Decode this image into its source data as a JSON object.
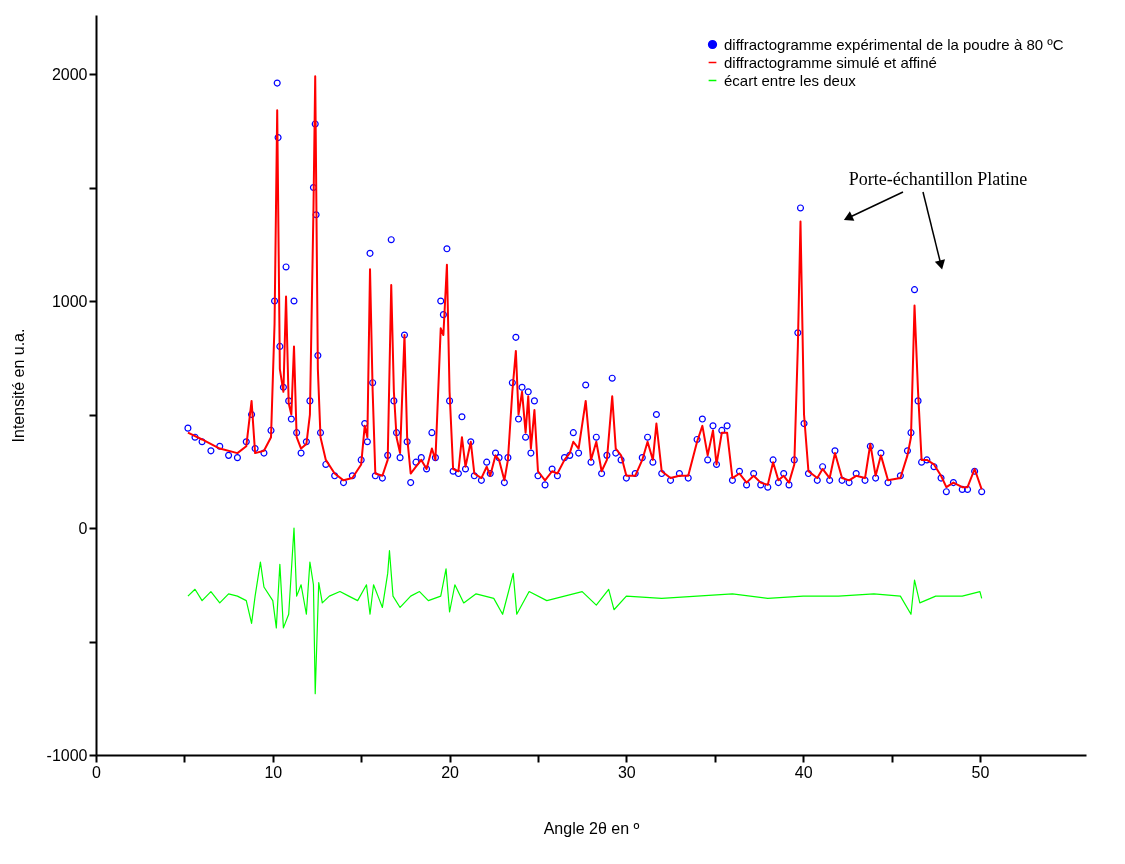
{
  "chart_data": {
    "type": "scatter",
    "xlabel": "Angle 2θ en º",
    "ylabel": "Intensité en u.a.",
    "xlim": [
      0,
      56
    ],
    "ylim": [
      -1000,
      2260
    ],
    "xticks": [
      0,
      {
        "value": 5,
        "label": null
      },
      10,
      {
        "value": 15,
        "label": null
      },
      20,
      {
        "value": 25,
        "label": null
      },
      30,
      {
        "value": 35,
        "label": null
      },
      40,
      {
        "value": 45,
        "label": null
      },
      50
    ],
    "yticks": [
      -1000,
      {
        "value": -500,
        "label": null
      },
      0,
      {
        "value": 500,
        "label": null
      },
      1000,
      {
        "value": 1500,
        "label": null
      },
      2000
    ],
    "grid": false,
    "legend": "top right",
    "annotations": [
      "Porte-échantillon Platine"
    ],
    "series": [
      {
        "name": "diffractogramme expérimental de la poudre à 80 ºC",
        "marker": "circle",
        "color": "#0000ff",
        "x": [
          5.2,
          5.6,
          6,
          6.5,
          7,
          7.5,
          8,
          8.5,
          8.8,
          9.0,
          9.5,
          9.9,
          10.1,
          10.25,
          10.3,
          10.4,
          10.6,
          10.75,
          10.9,
          11.05,
          11.2,
          11.35,
          11.6,
          11.9,
          12.1,
          12.3,
          12.4,
          12.45,
          12.55,
          12.7,
          13.0,
          13.5,
          14.0,
          14.5,
          15.0,
          15.2,
          15.35,
          15.5,
          15.65,
          15.8,
          16.2,
          16.5,
          16.7,
          16.85,
          17.0,
          17.2,
          17.45,
          17.6,
          17.8,
          18.1,
          18.4,
          18.7,
          19.0,
          19.2,
          19.5,
          19.65,
          19.85,
          20.0,
          20.2,
          20.5,
          20.7,
          20.9,
          21.2,
          21.4,
          21.8,
          22.1,
          22.3,
          22.6,
          22.8,
          23.1,
          23.3,
          23.55,
          23.75,
          23.9,
          24.1,
          24.3,
          24.45,
          24.6,
          24.8,
          25.0,
          25.4,
          25.8,
          26.1,
          26.5,
          26.8,
          27.0,
          27.3,
          27.7,
          28.0,
          28.3,
          28.6,
          28.9,
          29.2,
          29.4,
          29.7,
          30.0,
          30.5,
          30.9,
          31.2,
          31.5,
          31.7,
          32.0,
          32.5,
          33.0,
          33.5,
          34.0,
          34.3,
          34.6,
          34.9,
          35.1,
          35.4,
          35.7,
          36.0,
          36.4,
          36.8,
          37.2,
          37.6,
          38.0,
          38.3,
          38.6,
          38.9,
          39.2,
          39.5,
          39.7,
          39.85,
          40.05,
          40.3,
          40.8,
          41.1,
          41.5,
          41.8,
          42.2,
          42.6,
          43.0,
          43.5,
          43.8,
          44.1,
          44.4,
          44.8,
          45.5,
          45.9,
          46.1,
          46.3,
          46.5,
          46.7,
          47.0,
          47.4,
          47.8,
          48.1,
          48.5,
          49.0,
          49.3,
          49.7,
          50.1
        ],
        "values": [
          440,
          400,
          380,
          340,
          360,
          320,
          310,
          380,
          500,
          350,
          330,
          430,
          1000,
          1960,
          1720,
          800,
          620,
          1150,
          560,
          480,
          1000,
          420,
          330,
          380,
          560,
          1500,
          1780,
          1380,
          760,
          420,
          280,
          230,
          200,
          230,
          300,
          460,
          380,
          1210,
          640,
          230,
          220,
          320,
          1270,
          560,
          420,
          310,
          850,
          380,
          200,
          290,
          310,
          260,
          420,
          310,
          1000,
          940,
          1230,
          560,
          250,
          240,
          490,
          260,
          380,
          230,
          210,
          290,
          240,
          330,
          310,
          200,
          310,
          640,
          840,
          480,
          620,
          400,
          600,
          330,
          560,
          230,
          190,
          260,
          230,
          310,
          320,
          420,
          330,
          630,
          290,
          400,
          240,
          320,
          660,
          330,
          300,
          220,
          240,
          310,
          400,
          290,
          500,
          240,
          210,
          240,
          220,
          390,
          480,
          300,
          450,
          280,
          430,
          450,
          210,
          250,
          190,
          240,
          190,
          180,
          300,
          200,
          240,
          190,
          300,
          860,
          1410,
          460,
          240,
          210,
          270,
          210,
          340,
          210,
          200,
          240,
          210,
          360,
          220,
          330,
          200,
          230,
          340,
          420,
          1050,
          560,
          290,
          300,
          270,
          220,
          160,
          200,
          170,
          170,
          250,
          160
        ]
      },
      {
        "name": "diffractogramme simulé et affiné",
        "type": "line",
        "color": "#ff0000",
        "x": [
          5.2,
          6,
          7,
          8,
          8.5,
          8.8,
          9.0,
          9.5,
          9.9,
          10.1,
          10.25,
          10.4,
          10.6,
          10.75,
          10.9,
          11.05,
          11.2,
          11.35,
          11.6,
          11.9,
          12.1,
          12.3,
          12.4,
          12.55,
          12.7,
          13.0,
          13.5,
          14.0,
          14.5,
          15.0,
          15.2,
          15.35,
          15.5,
          15.65,
          15.8,
          16.2,
          16.5,
          16.7,
          16.85,
          17.0,
          17.2,
          17.45,
          17.6,
          17.8,
          18.1,
          18.4,
          18.7,
          19.0,
          19.2,
          19.5,
          19.65,
          19.85,
          20.0,
          20.2,
          20.5,
          20.7,
          20.9,
          21.2,
          21.4,
          21.8,
          22.1,
          22.3,
          22.6,
          22.8,
          23.1,
          23.3,
          23.55,
          23.75,
          23.9,
          24.1,
          24.3,
          24.45,
          24.6,
          24.8,
          25.0,
          25.4,
          25.8,
          26.1,
          26.5,
          26.8,
          27.0,
          27.3,
          27.7,
          28.0,
          28.3,
          28.6,
          28.9,
          29.2,
          29.4,
          29.7,
          30.0,
          30.5,
          30.9,
          31.2,
          31.5,
          31.7,
          32.0,
          32.5,
          33.0,
          33.5,
          34.0,
          34.3,
          34.6,
          34.9,
          35.1,
          35.4,
          35.7,
          36.0,
          36.4,
          36.8,
          37.2,
          37.6,
          38.0,
          38.3,
          38.6,
          38.9,
          39.2,
          39.5,
          39.7,
          39.85,
          40.05,
          40.3,
          40.8,
          41.1,
          41.5,
          41.8,
          42.2,
          42.6,
          43.0,
          43.5,
          43.8,
          44.1,
          44.4,
          44.8,
          45.5,
          45.9,
          46.1,
          46.3,
          46.5,
          46.7,
          47.0,
          47.4,
          47.8,
          48.1,
          48.5,
          49.0,
          49.3,
          49.7,
          50.1
        ],
        "values": [
          420,
          390,
          350,
          330,
          360,
          560,
          330,
          340,
          400,
          900,
          1840,
          700,
          600,
          1020,
          550,
          500,
          800,
          400,
          350,
          370,
          500,
          1400,
          1990,
          700,
          400,
          300,
          240,
          210,
          220,
          280,
          450,
          400,
          1140,
          600,
          240,
          230,
          300,
          1070,
          600,
          400,
          330,
          850,
          400,
          240,
          270,
          300,
          260,
          350,
          300,
          880,
          850,
          1160,
          600,
          260,
          250,
          400,
          270,
          380,
          240,
          220,
          270,
          230,
          320,
          300,
          210,
          300,
          600,
          780,
          500,
          600,
          420,
          580,
          350,
          520,
          250,
          210,
          250,
          240,
          300,
          330,
          380,
          350,
          560,
          300,
          380,
          250,
          300,
          580,
          350,
          320,
          230,
          230,
          300,
          380,
          300,
          460,
          250,
          220,
          230,
          230,
          380,
          450,
          320,
          430,
          280,
          420,
          420,
          220,
          240,
          200,
          230,
          200,
          190,
          290,
          210,
          230,
          200,
          280,
          800,
          1350,
          500,
          250,
          220,
          260,
          220,
          330,
          220,
          210,
          230,
          220,
          370,
          230,
          320,
          210,
          220,
          320,
          400,
          980,
          600,
          300,
          300,
          280,
          230,
          180,
          200,
          180,
          180,
          260,
          170
        ]
      },
      {
        "name": "écart entre les deux",
        "type": "line",
        "color": "#00ff00",
        "x": [
          5.2,
          5.6,
          6,
          6.5,
          7,
          7.5,
          8,
          8.5,
          8.8,
          9.0,
          9.3,
          9.5,
          10.0,
          10.2,
          10.4,
          10.6,
          10.9,
          11.2,
          11.35,
          11.6,
          11.9,
          12.1,
          12.3,
          12.4,
          12.6,
          12.8,
          13.2,
          13.8,
          14.3,
          14.8,
          15.3,
          15.5,
          15.7,
          16.0,
          16.2,
          16.5,
          16.6,
          16.8,
          17.2,
          17.8,
          18.3,
          18.8,
          19.5,
          19.8,
          20.0,
          20.3,
          20.8,
          21.5,
          22.5,
          23.0,
          23.6,
          23.8,
          24.5,
          25.5,
          26.5,
          27.5,
          28.3,
          29.0,
          29.3,
          30,
          32,
          34,
          36,
          38,
          40,
          42,
          44,
          45.5,
          46.1,
          46.3,
          46.6,
          47.5,
          49,
          50,
          50.1
        ],
        "values": [
          -300,
          -270,
          -320,
          -280,
          -330,
          -290,
          -300,
          -320,
          -420,
          -300,
          -150,
          -260,
          -320,
          -440,
          -160,
          -440,
          -380,
          0,
          -300,
          -250,
          -380,
          -150,
          -250,
          -730,
          -240,
          -330,
          -300,
          -280,
          -300,
          -320,
          -250,
          -380,
          -250,
          -310,
          -350,
          -200,
          -100,
          -300,
          -350,
          -300,
          -280,
          -320,
          -300,
          -180,
          -370,
          -250,
          -330,
          -290,
          -310,
          -380,
          -200,
          -380,
          -280,
          -320,
          -300,
          -280,
          -340,
          -270,
          -360,
          -300,
          -310,
          -300,
          -290,
          -310,
          -300,
          -300,
          -290,
          -300,
          -380,
          -230,
          -330,
          -300,
          -300,
          -280,
          -310
        ]
      }
    ]
  }
}
